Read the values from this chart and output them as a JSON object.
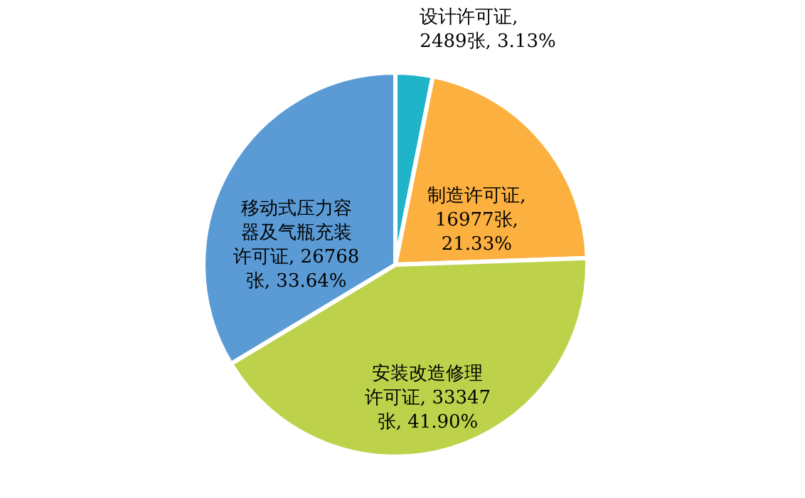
{
  "chart_data": {
    "type": "pie",
    "categories": [
      "设计许可证",
      "制造许可证",
      "安装改造修理许可证",
      "移动式压力容器及气瓶充装许可证"
    ],
    "values": [
      2489,
      16977,
      33347,
      26768
    ],
    "value_labels": [
      ", 2489张, 3.13%",
      ", 16977张, 21.33%",
      ", 33347张, 41.90%",
      ", 26768张, 33.64%"
    ],
    "colors": [
      "#1fb4c9",
      "#fbb040",
      "#bdd24a",
      "#5b9bd5"
    ],
    "legend": false
  }
}
